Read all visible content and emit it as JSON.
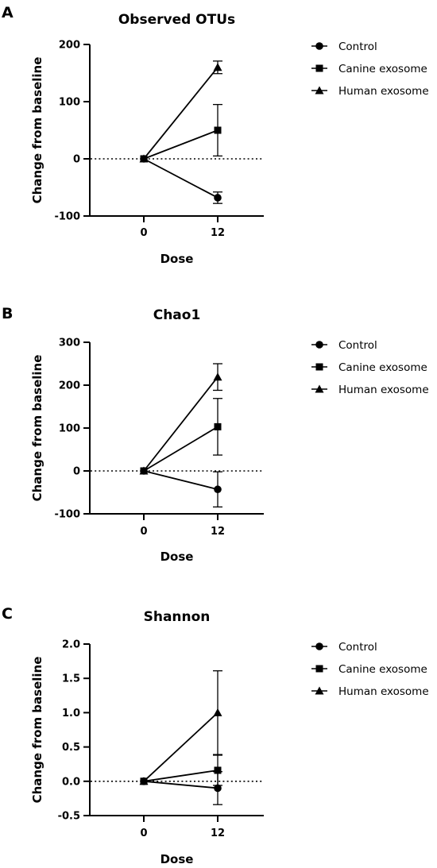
{
  "chart_data": [
    {
      "panel": "A",
      "type": "line",
      "title": "Observed OTUs",
      "xlabel": "Dose",
      "ylabel": "Change from baseline",
      "categories": [
        "0",
        "12"
      ],
      "ylim": [
        -100,
        200
      ],
      "yticks": [
        -100,
        0,
        100,
        200
      ],
      "baseline": 0,
      "legend_position": "right",
      "series": [
        {
          "name": "Control",
          "marker": "circle",
          "values": [
            0,
            -68
          ],
          "error": [
            0,
            10
          ]
        },
        {
          "name": "Canine exosome",
          "marker": "square",
          "values": [
            0,
            50
          ],
          "error": [
            0,
            45
          ]
        },
        {
          "name": "Human exosome",
          "marker": "triangle",
          "values": [
            0,
            160
          ],
          "error": [
            0,
            11
          ]
        }
      ]
    },
    {
      "panel": "B",
      "type": "line",
      "title": "Chao1",
      "xlabel": "Dose",
      "ylabel": "Change from baseline",
      "categories": [
        "0",
        "12"
      ],
      "ylim": [
        -100,
        300
      ],
      "yticks": [
        -100,
        0,
        100,
        200,
        300
      ],
      "baseline": 0,
      "legend_position": "right",
      "series": [
        {
          "name": "Control",
          "marker": "circle",
          "values": [
            0,
            -43
          ],
          "error": [
            0,
            41
          ]
        },
        {
          "name": "Canine exosome",
          "marker": "square",
          "values": [
            0,
            103
          ],
          "error": [
            0,
            66
          ]
        },
        {
          "name": "Human exosome",
          "marker": "triangle",
          "values": [
            0,
            219
          ],
          "error": [
            0,
            31
          ]
        }
      ]
    },
    {
      "panel": "C",
      "type": "line",
      "title": "Shannon",
      "xlabel": "Dose",
      "ylabel": "Change from baseline",
      "categories": [
        "0",
        "12"
      ],
      "ylim": [
        -0.5,
        2.0
      ],
      "yticks": [
        "-0.5",
        "0.0",
        "0.5",
        "1.0",
        "1.5",
        "2.0"
      ],
      "baseline": 0,
      "legend_position": "right",
      "series": [
        {
          "name": "Control",
          "marker": "circle",
          "values": [
            0,
            -0.1
          ],
          "error": [
            0,
            0.24
          ]
        },
        {
          "name": "Canine exosome",
          "marker": "square",
          "values": [
            0,
            0.16
          ],
          "error": [
            0,
            0.22
          ]
        },
        {
          "name": "Human exosome",
          "marker": "triangle",
          "values": [
            0,
            1.0
          ],
          "error": [
            0,
            0.61
          ]
        }
      ]
    }
  ]
}
